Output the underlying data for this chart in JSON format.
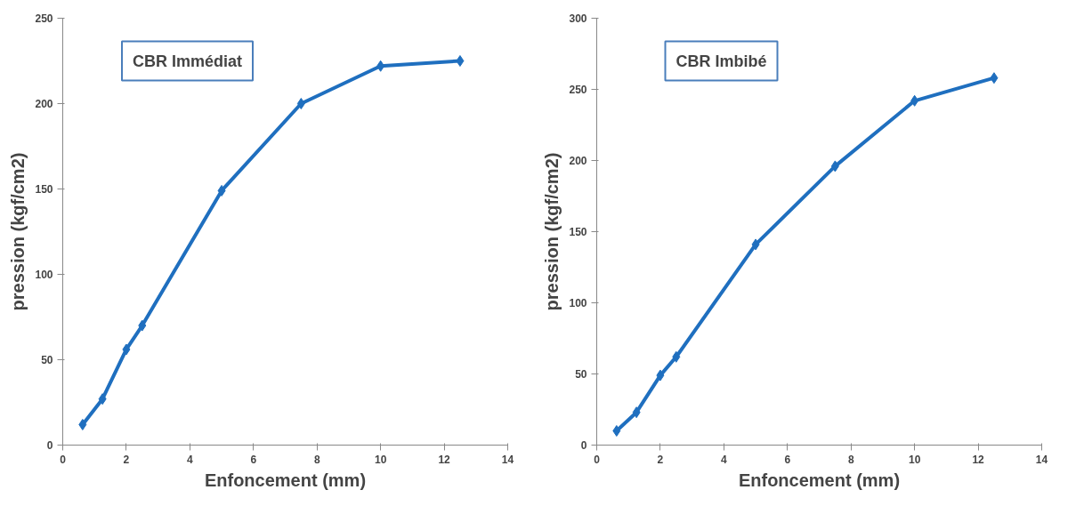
{
  "chart_data": [
    {
      "type": "line",
      "title": "CBR Immédiat",
      "xlabel": "Enfoncement (mm)",
      "ylabel": "pression (kgf/cm2)",
      "x": [
        0.625,
        1.25,
        2,
        2.5,
        5,
        7.5,
        10,
        12.5
      ],
      "series": [
        {
          "color": "#1f6fbf",
          "values": [
            12,
            27,
            56,
            70,
            149,
            200,
            222,
            225
          ]
        }
      ],
      "xlim": [
        0,
        14
      ],
      "xticks": [
        0,
        2,
        4,
        6,
        8,
        10,
        12,
        14
      ],
      "ylim": [
        0,
        250
      ],
      "yticks": [
        0,
        50,
        100,
        150,
        200,
        250
      ],
      "grid": false,
      "marker": "diamond",
      "line_style": "solid"
    },
    {
      "type": "line",
      "title": "CBR Imbibé",
      "xlabel": "Enfoncement (mm)",
      "ylabel": "pression (kgf/cm2)",
      "x": [
        0.625,
        1.25,
        2,
        2.5,
        5,
        7.5,
        10,
        12.5
      ],
      "series": [
        {
          "color": "#1f6fbf",
          "values": [
            10,
            23,
            49,
            62,
            141,
            196,
            242,
            258
          ]
        }
      ],
      "xlim": [
        0,
        14
      ],
      "xticks": [
        0,
        2,
        4,
        6,
        8,
        10,
        12,
        14
      ],
      "ylim": [
        0,
        300
      ],
      "yticks": [
        0,
        50,
        100,
        150,
        200,
        250,
        300
      ],
      "grid": false,
      "marker": "diamond",
      "line_style": "solid"
    }
  ]
}
